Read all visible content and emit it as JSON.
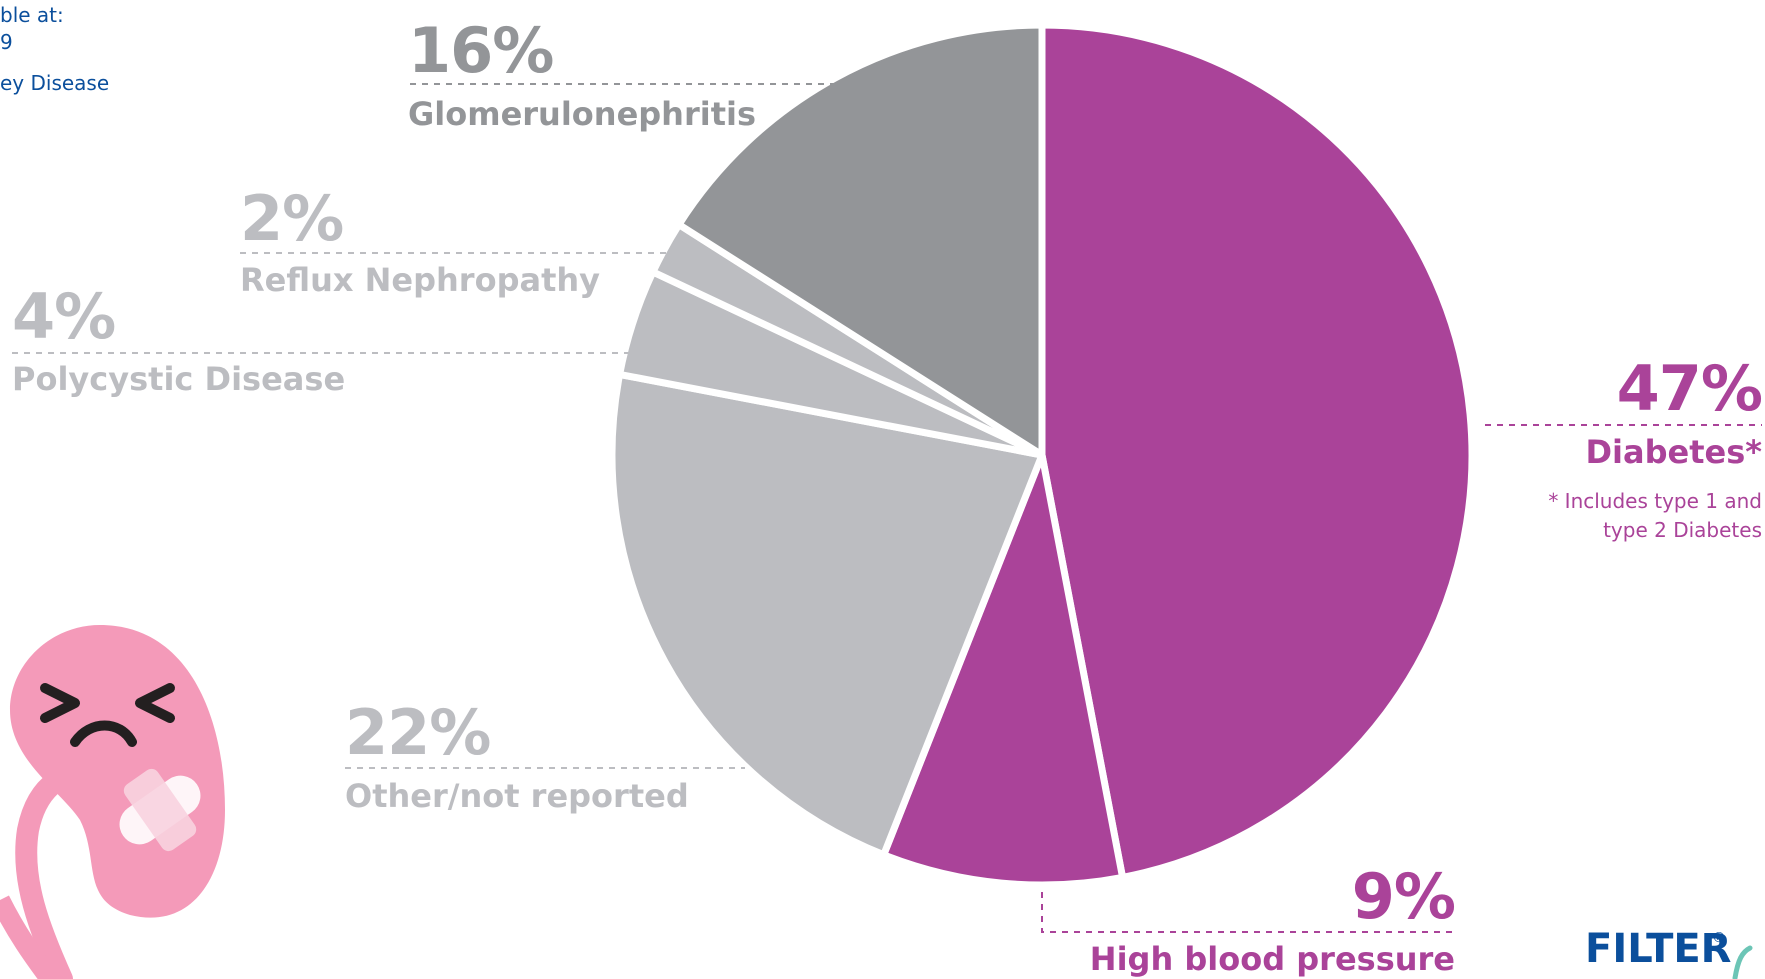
{
  "source_fragment": {
    "line1": "ble at:",
    "line2": "9",
    "line3": "ey Disease"
  },
  "chart_data": {
    "type": "pie",
    "slices": [
      {
        "value": 47,
        "pct_text": "47%",
        "label": "Diabetes*",
        "color": "#aa4399"
      },
      {
        "value": 9,
        "pct_text": "9%",
        "label": "High blood pressure",
        "color": "#aa4399"
      },
      {
        "value": 22,
        "pct_text": "22%",
        "label": "Other/not reported",
        "color": "#bcbdc1"
      },
      {
        "value": 4,
        "pct_text": "4%",
        "label": "Polycystic Disease",
        "color": "#bcbdc1"
      },
      {
        "value": 2,
        "pct_text": "2%",
        "label": "Reflux Nephropathy",
        "color": "#bcbdc1"
      },
      {
        "value": 16,
        "pct_text": "16%",
        "label": "Glomerulonephritis",
        "color": "#939598"
      }
    ],
    "footnote": [
      "* Includes type 1 and",
      "type 2 Diabetes"
    ]
  },
  "colors": {
    "accent": "#aa4399",
    "gray_dark": "#939598",
    "gray_light": "#bcbdc1",
    "kidney_pink": "#f49ab9",
    "source_blue": "#0b4f9c"
  },
  "logo": {
    "text": "FILTER",
    "mark": "®"
  },
  "icons": {
    "mascot": "kidney-mascot-icon"
  }
}
